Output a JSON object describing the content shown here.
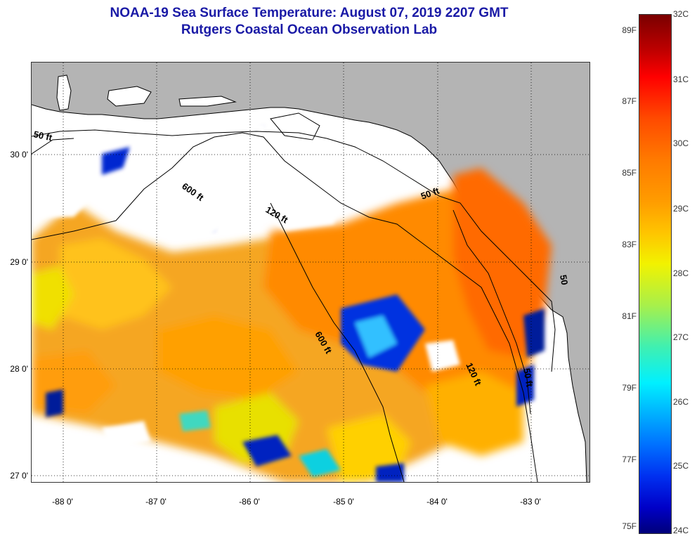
{
  "header": {
    "title_line1": "NOAA-19 Sea Surface Temperature:  August 07, 2019 2207 GMT",
    "title_line2": "Rutgers Coastal Ocean Observation Lab"
  },
  "map": {
    "land_color": "#b4b4b4",
    "no_data_color": "#ffffff",
    "lat_labels": [
      "30 0'",
      "29 0'",
      "28 0'",
      "27 0'"
    ],
    "lon_labels": [
      "-88 0'",
      "-87 0'",
      "-86 0'",
      "-85 0'",
      "-84 0'",
      "-83 0'"
    ],
    "contour_labels": [
      "50 ft",
      "120 ft",
      "600 ft",
      "50 ft",
      "120 ft",
      "50 ft",
      "600 ft",
      "50"
    ]
  },
  "colorbar": {
    "fahrenheit": [
      "89F",
      "87F",
      "85F",
      "83F",
      "81F",
      "79F",
      "77F",
      "75F"
    ],
    "celsius": [
      "32C",
      "31C",
      "30C",
      "29C",
      "28C",
      "27C",
      "26C",
      "25C",
      "24C"
    ]
  }
}
